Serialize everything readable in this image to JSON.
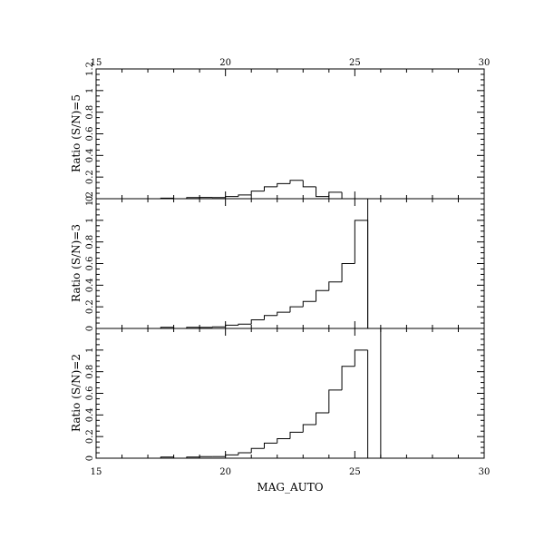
{
  "chart_data": [
    {
      "type": "histogram",
      "panel": "top",
      "ylabel": "Ratio (S/N)=5",
      "xlim": [
        15,
        30
      ],
      "ylim": [
        0,
        1.2
      ],
      "x_ticks": [
        "15",
        "20",
        "25",
        "30"
      ],
      "y_ticks": [
        "0",
        "0.2",
        "0.4",
        "0.6",
        "0.8",
        "1",
        "1.2"
      ],
      "bin_width": 0.5,
      "bins": [
        {
          "x": 15.0,
          "y": 0.0
        },
        {
          "x": 15.5,
          "y": 0.0
        },
        {
          "x": 16.0,
          "y": 0.0
        },
        {
          "x": 16.5,
          "y": 0.0
        },
        {
          "x": 17.0,
          "y": 0.0
        },
        {
          "x": 17.5,
          "y": 0.005
        },
        {
          "x": 18.0,
          "y": 0.0
        },
        {
          "x": 18.5,
          "y": 0.01
        },
        {
          "x": 19.0,
          "y": 0.012
        },
        {
          "x": 19.5,
          "y": 0.01
        },
        {
          "x": 20.0,
          "y": 0.02
        },
        {
          "x": 20.5,
          "y": 0.035
        },
        {
          "x": 21.0,
          "y": 0.07
        },
        {
          "x": 21.5,
          "y": 0.11
        },
        {
          "x": 22.0,
          "y": 0.14
        },
        {
          "x": 22.5,
          "y": 0.17
        },
        {
          "x": 23.0,
          "y": 0.11
        },
        {
          "x": 23.5,
          "y": 0.02
        },
        {
          "x": 24.0,
          "y": 0.06
        },
        {
          "x": 24.5,
          "y": 0.0
        }
      ]
    },
    {
      "type": "histogram",
      "panel": "middle",
      "ylabel": "Ratio (S/N)=3",
      "xlim": [
        15,
        30
      ],
      "ylim": [
        0,
        1.2
      ],
      "x_ticks": [],
      "y_ticks": [
        "0",
        "0.2",
        "0.4",
        "0.6",
        "0.8",
        "1",
        "1.2"
      ],
      "bin_width": 0.5,
      "bins": [
        {
          "x": 15.0,
          "y": 0.0
        },
        {
          "x": 15.5,
          "y": 0.0
        },
        {
          "x": 16.0,
          "y": 0.0
        },
        {
          "x": 16.5,
          "y": 0.0
        },
        {
          "x": 17.0,
          "y": 0.0
        },
        {
          "x": 17.5,
          "y": 0.01
        },
        {
          "x": 18.0,
          "y": 0.0
        },
        {
          "x": 18.5,
          "y": 0.01
        },
        {
          "x": 19.0,
          "y": 0.01
        },
        {
          "x": 19.5,
          "y": 0.015
        },
        {
          "x": 20.0,
          "y": 0.03
        },
        {
          "x": 20.5,
          "y": 0.04
        },
        {
          "x": 21.0,
          "y": 0.08
        },
        {
          "x": 21.5,
          "y": 0.12
        },
        {
          "x": 22.0,
          "y": 0.15
        },
        {
          "x": 22.5,
          "y": 0.2
        },
        {
          "x": 23.0,
          "y": 0.25
        },
        {
          "x": 23.5,
          "y": 0.35
        },
        {
          "x": 24.0,
          "y": 0.43
        },
        {
          "x": 24.5,
          "y": 0.6
        },
        {
          "x": 25.0,
          "y": 1.0
        }
      ],
      "vertical_line_x": 25.5
    },
    {
      "type": "histogram",
      "panel": "bottom",
      "ylabel": "Ratio (S/N)=2",
      "xlabel": "MAG_AUTO",
      "xlim": [
        15,
        30
      ],
      "ylim": [
        0,
        1.2
      ],
      "x_ticks": [
        "15",
        "20",
        "25",
        "30"
      ],
      "y_ticks": [
        "0",
        "0.2",
        "0.4",
        "0.6",
        "0.8",
        "1"
      ],
      "bin_width": 0.5,
      "bins": [
        {
          "x": 15.0,
          "y": 0.0
        },
        {
          "x": 15.5,
          "y": 0.0
        },
        {
          "x": 16.0,
          "y": 0.0
        },
        {
          "x": 16.5,
          "y": 0.0
        },
        {
          "x": 17.0,
          "y": 0.0
        },
        {
          "x": 17.5,
          "y": 0.01
        },
        {
          "x": 18.0,
          "y": 0.0
        },
        {
          "x": 18.5,
          "y": 0.01
        },
        {
          "x": 19.0,
          "y": 0.015
        },
        {
          "x": 19.5,
          "y": 0.015
        },
        {
          "x": 20.0,
          "y": 0.03
        },
        {
          "x": 20.5,
          "y": 0.05
        },
        {
          "x": 21.0,
          "y": 0.09
        },
        {
          "x": 21.5,
          "y": 0.14
        },
        {
          "x": 22.0,
          "y": 0.18
        },
        {
          "x": 22.5,
          "y": 0.24
        },
        {
          "x": 23.0,
          "y": 0.31
        },
        {
          "x": 23.5,
          "y": 0.42
        },
        {
          "x": 24.0,
          "y": 0.63
        },
        {
          "x": 24.5,
          "y": 0.85
        },
        {
          "x": 25.0,
          "y": 1.0
        }
      ],
      "vertical_line_x": 26.0
    }
  ]
}
